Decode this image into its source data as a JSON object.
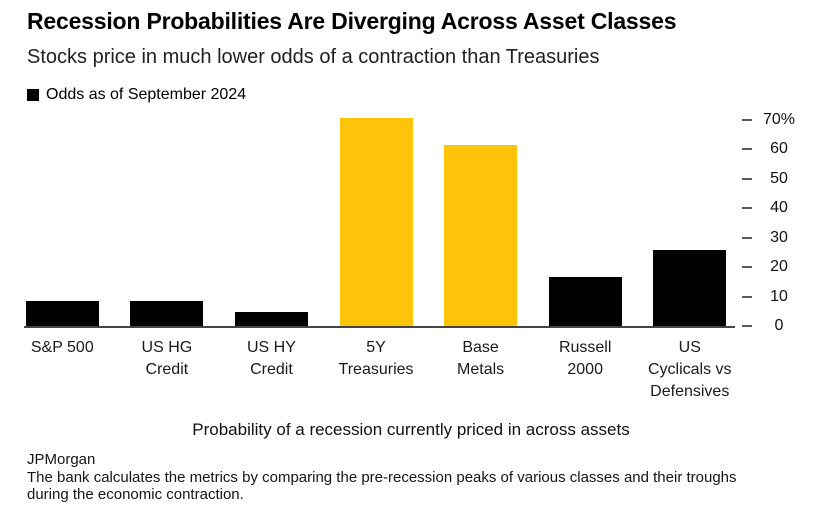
{
  "header": {
    "title": "Recession Probabilities Are Diverging Across Asset Classes",
    "subtitle": "Stocks price in much lower odds of a contraction than Treasuries"
  },
  "legend": {
    "marker_color": "#000000",
    "label": "Odds as of September 2024"
  },
  "chart_data": {
    "type": "bar",
    "title": "Recession Probabilities Are Diverging Across Asset Classes",
    "subtitle": "Stocks price in much lower odds of a contraction than Treasuries",
    "legend_entries": [
      "Odds as of September 2024"
    ],
    "legend_position": "top-left",
    "categories": [
      "S&P 500",
      "US HG Credit",
      "US HY Credit",
      "5Y Treasuries",
      "Base Metals",
      "Russell 2000",
      "US Cyclicals vs Defensives"
    ],
    "category_lines": [
      [
        "S&P 500"
      ],
      [
        "US HG",
        "Credit"
      ],
      [
        "US HY",
        "Credit"
      ],
      [
        "5Y",
        "Treasuries"
      ],
      [
        "Base",
        "Metals"
      ],
      [
        "Russell",
        "2000"
      ],
      [
        "US",
        "Cyclicals vs",
        "Defensives"
      ]
    ],
    "values": [
      9,
      9,
      5,
      71,
      62,
      17,
      26
    ],
    "unit": "%",
    "bar_colors": [
      "#000000",
      "#000000",
      "#000000",
      "#FDC40A",
      "#FDC40A",
      "#000000",
      "#000000"
    ],
    "highlight_color": "#FDC40A",
    "default_color": "#000000",
    "ylim": [
      0,
      70
    ],
    "yticks": [
      70,
      60,
      50,
      40,
      30,
      20,
      10,
      0
    ],
    "ytick_labels": [
      "70%",
      "60",
      "50",
      "40",
      "30",
      "20",
      "10",
      "0"
    ],
    "yaxis_side": "right",
    "grid": false,
    "xlabel": "Probability of a recession currently priced in across assets",
    "ylabel": ""
  },
  "source": {
    "name": "JPMorgan",
    "note_lines": [
      "The bank calculates the metrics by comparing the pre-recession peaks of various classes and their troughs",
      "during the economic contraction."
    ]
  }
}
